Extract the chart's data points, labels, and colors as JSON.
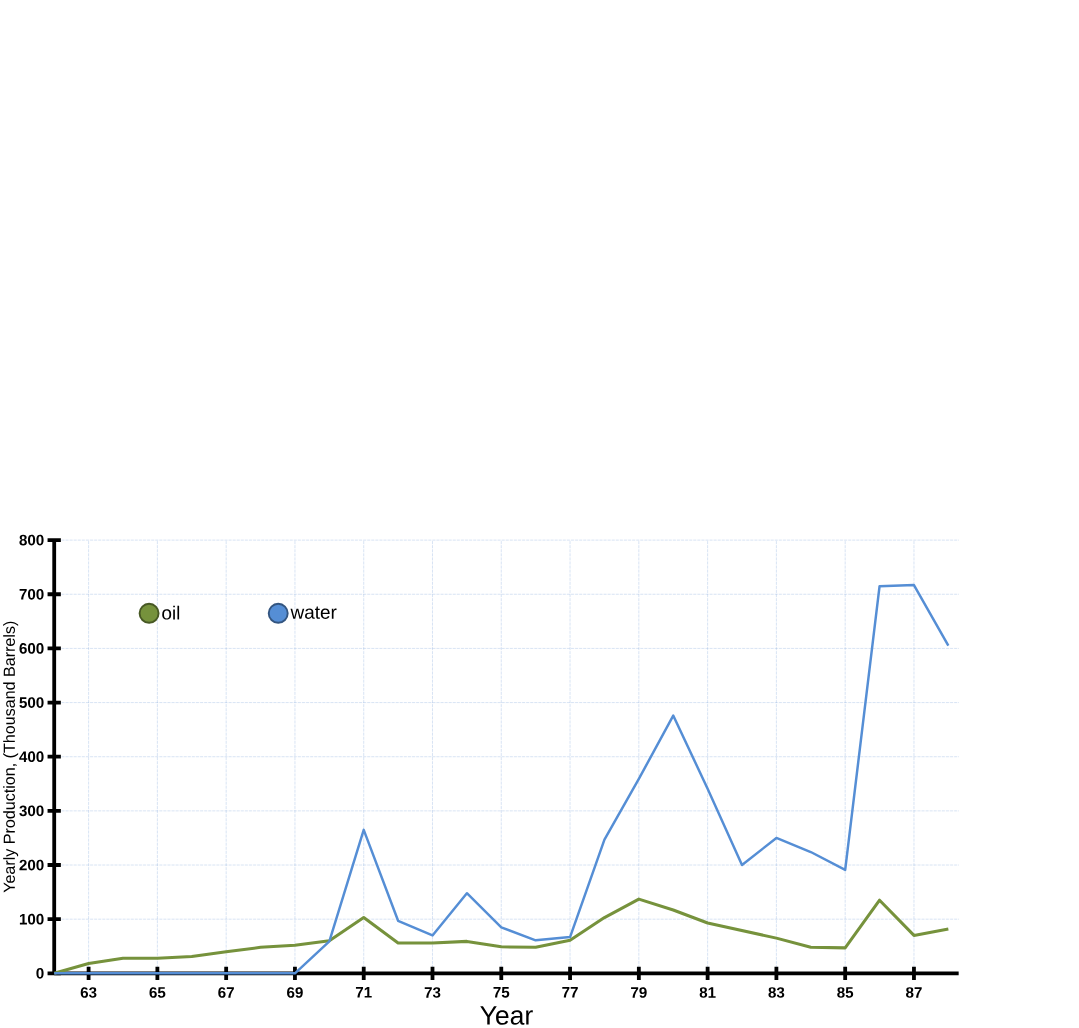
{
  "chart_data": {
    "type": "line",
    "xlabel": "Year",
    "ylabel": "Yearly Production, (Thousand Barrels)",
    "x": [
      62,
      63,
      64,
      65,
      66,
      67,
      68,
      69,
      70,
      71,
      72,
      73,
      74,
      75,
      76,
      77,
      78,
      79,
      80,
      81,
      82,
      83,
      84,
      85,
      86,
      87,
      88
    ],
    "series": [
      {
        "name": "oil",
        "color": "#76923c",
        "values": [
          0,
          18,
          28,
          28,
          31,
          40,
          48,
          52,
          60,
          103,
          56,
          56,
          59,
          49,
          48,
          61,
          103,
          137,
          117,
          93,
          79,
          65,
          48,
          47,
          135,
          70,
          82
        ]
      },
      {
        "name": "water",
        "color": "#558ed5",
        "values": [
          0,
          0,
          0,
          0,
          0,
          0,
          0,
          0,
          59,
          265,
          97,
          70,
          148,
          85,
          61,
          67,
          247,
          359,
          476,
          341,
          200,
          250,
          224,
          191,
          715,
          717,
          605
        ]
      }
    ],
    "xlim": [
      62,
      88.3
    ],
    "ylim": [
      0,
      800
    ],
    "xticks": [
      63,
      65,
      67,
      69,
      71,
      73,
      75,
      77,
      79,
      81,
      83,
      85,
      87
    ],
    "yticks": [
      0,
      100,
      200,
      300,
      400,
      500,
      600,
      700,
      800
    ],
    "grid": true,
    "legend": "top left",
    "marker": "none",
    "line_style": "solid"
  }
}
